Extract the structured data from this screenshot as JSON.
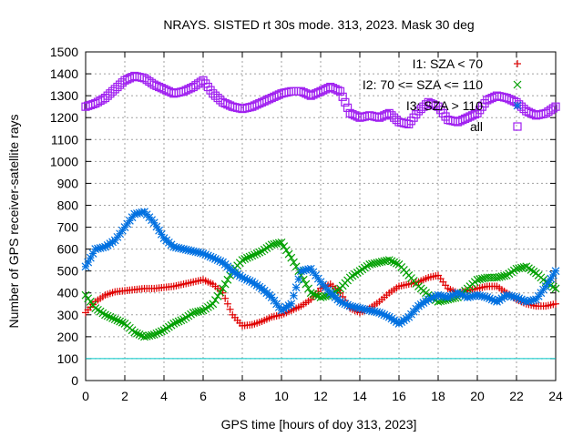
{
  "chart_data": {
    "type": "scatter",
    "title": "NRAYS. SISTED rt 30s mode. 313, 2023. Mask 30 deg",
    "xlabel": "GPS time [hours of doy 313, 2023]",
    "ylabel": "Number of GPS receiver-satellite rays",
    "xlim": [
      0,
      24
    ],
    "ylim": [
      0,
      1500
    ],
    "xticks": [
      0,
      2,
      4,
      6,
      8,
      10,
      12,
      14,
      16,
      18,
      20,
      22,
      24
    ],
    "yticks": [
      0,
      100,
      200,
      300,
      400,
      500,
      600,
      700,
      800,
      900,
      1000,
      1100,
      1200,
      1300,
      1400,
      1500
    ],
    "grid": true,
    "legend_position": "top-right",
    "threshold_line": {
      "value": 100,
      "color": "#00c8c8"
    },
    "series": [
      {
        "name": "I1: SZA < 70",
        "marker": "plus",
        "color": "#e00000",
        "x": [
          0,
          0.5,
          1,
          1.5,
          2,
          2.5,
          3,
          3.5,
          4,
          4.5,
          5,
          5.5,
          6,
          6.5,
          7,
          7.5,
          8,
          8.5,
          9,
          9.5,
          10,
          10.5,
          11,
          11.5,
          12,
          12.5,
          13,
          13.5,
          14,
          14.5,
          15,
          15.5,
          16,
          16.5,
          17,
          17.5,
          18,
          18.5,
          19,
          19.5,
          20,
          20.5,
          21,
          21.5,
          22,
          22.5,
          23,
          23.5,
          24
        ],
        "y": [
          310,
          360,
          390,
          405,
          410,
          415,
          420,
          420,
          425,
          430,
          440,
          450,
          460,
          440,
          400,
          300,
          250,
          255,
          270,
          290,
          300,
          320,
          340,
          370,
          420,
          440,
          400,
          330,
          310,
          330,
          360,
          400,
          430,
          440,
          450,
          470,
          480,
          420,
          400,
          410,
          420,
          430,
          430,
          400,
          370,
          350,
          340,
          340,
          350
        ]
      },
      {
        "name": "I2: 70 <= SZA <= 110",
        "marker": "cross",
        "color": "#00a000",
        "x": [
          0,
          0.5,
          1,
          1.5,
          2,
          2.5,
          3,
          3.5,
          4,
          4.5,
          5,
          5.5,
          6,
          6.5,
          7,
          7.5,
          8,
          8.5,
          9,
          9.5,
          10,
          10.5,
          11,
          11.5,
          12,
          12.5,
          13,
          13.5,
          14,
          14.5,
          15,
          15.5,
          16,
          16.5,
          17,
          17.5,
          18,
          18.5,
          19,
          19.5,
          20,
          20.5,
          21,
          21.5,
          22,
          22.5,
          23,
          23.5,
          24
        ],
        "y": [
          390,
          330,
          300,
          280,
          260,
          220,
          200,
          210,
          230,
          260,
          280,
          310,
          320,
          350,
          420,
          500,
          550,
          570,
          590,
          620,
          630,
          560,
          480,
          400,
          380,
          390,
          420,
          470,
          500,
          530,
          540,
          550,
          530,
          480,
          430,
          390,
          360,
          370,
          380,
          420,
          460,
          470,
          470,
          480,
          510,
          520,
          490,
          450,
          420
        ]
      },
      {
        "name": "I3: SZA > 110",
        "marker": "asterisk",
        "color": "#0070e0",
        "x": [
          0,
          0.5,
          1,
          1.5,
          2,
          2.5,
          3,
          3.5,
          4,
          4.5,
          5,
          5.5,
          6,
          6.5,
          7,
          7.5,
          8,
          8.5,
          9,
          9.5,
          10,
          10.5,
          11,
          11.5,
          12,
          12.5,
          13,
          13.5,
          14,
          14.5,
          15,
          15.5,
          16,
          16.5,
          17,
          17.5,
          18,
          18.5,
          19,
          19.5,
          20,
          20.5,
          21,
          21.5,
          22,
          22.5,
          23,
          23.5,
          24
        ],
        "y": [
          520,
          600,
          610,
          640,
          700,
          760,
          770,
          720,
          650,
          610,
          600,
          590,
          580,
          560,
          540,
          500,
          470,
          450,
          420,
          380,
          320,
          350,
          500,
          510,
          450,
          400,
          360,
          340,
          330,
          320,
          310,
          290,
          260,
          290,
          340,
          370,
          390,
          380,
          400,
          380,
          390,
          380,
          360,
          390,
          380,
          360,
          370,
          430,
          500
        ]
      },
      {
        "name": "all",
        "marker": "square",
        "color": "#a020f0",
        "x": [
          0,
          0.5,
          1,
          1.5,
          2,
          2.5,
          3,
          3.5,
          4,
          4.5,
          5,
          5.5,
          6,
          6.5,
          7,
          7.5,
          8,
          8.5,
          9,
          9.5,
          10,
          10.5,
          11,
          11.5,
          12,
          12.5,
          13,
          13.5,
          14,
          14.5,
          15,
          15.5,
          16,
          16.5,
          17,
          17.5,
          18,
          18.5,
          19,
          19.5,
          20,
          20.5,
          21,
          21.5,
          22,
          22.5,
          23,
          23.5,
          24
        ],
        "y": [
          1250,
          1265,
          1290,
          1330,
          1370,
          1390,
          1380,
          1350,
          1330,
          1310,
          1320,
          1340,
          1370,
          1310,
          1270,
          1250,
          1240,
          1250,
          1270,
          1290,
          1310,
          1320,
          1320,
          1300,
          1320,
          1340,
          1320,
          1220,
          1200,
          1210,
          1200,
          1220,
          1180,
          1170,
          1230,
          1270,
          1250,
          1190,
          1180,
          1200,
          1220,
          1280,
          1300,
          1290,
          1270,
          1230,
          1210,
          1220,
          1250
        ]
      }
    ]
  }
}
